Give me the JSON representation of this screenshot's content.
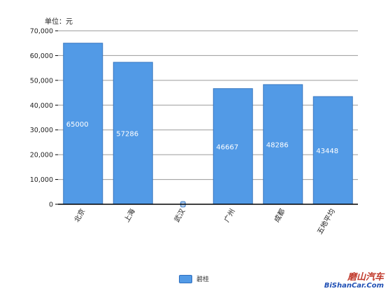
{
  "unit_label": "单位：元",
  "legend": {
    "label": "碧桂",
    "color": "#529ae6"
  },
  "watermark": {
    "text": "磨山汽车",
    "url": "BiShanCar.Com"
  },
  "colors": {
    "bar": "#529ae6",
    "bar_border": "#3a78c0",
    "grid": "#9a9a9a",
    "axis": "#000000"
  },
  "chart_data": {
    "type": "bar",
    "categories": [
      "北京",
      "上海",
      "武汉",
      "广州",
      "成都",
      "五地平均"
    ],
    "series": [
      {
        "name": "碧桂",
        "values": [
          65000,
          57286,
          0,
          46667,
          48286,
          43448
        ]
      }
    ],
    "data_labels": [
      "65000",
      "57286",
      "0",
      "46667",
      "48286",
      "43448"
    ],
    "yticks": [
      "0",
      "10,000",
      "20,000",
      "30,000",
      "40,000",
      "50,000",
      "60,000",
      "70,000"
    ],
    "ylim": [
      0,
      70000
    ],
    "grid": true,
    "legend_position": "bottom",
    "title": "",
    "xlabel": "",
    "ylabel": ""
  }
}
